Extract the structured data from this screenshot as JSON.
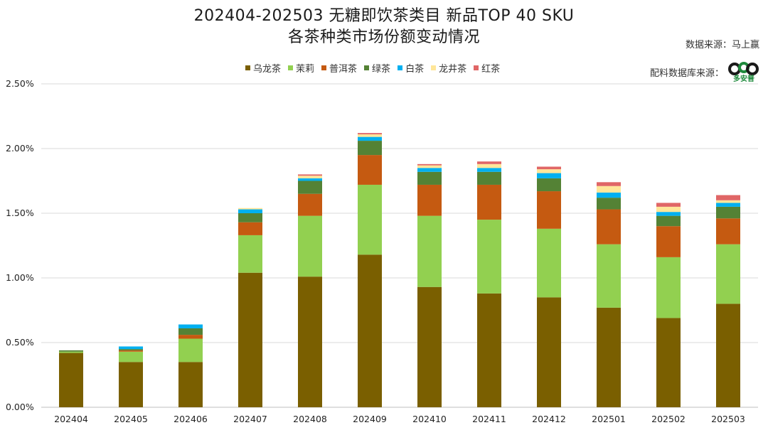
{
  "chart_data": {
    "type": "bar",
    "stacked": true,
    "title": "202404-202503 无糖即饮茶类目 新品TOP 40 SKU",
    "subtitle": "各茶种类市场份额变动情况",
    "categories": [
      "202404",
      "202405",
      "202406",
      "202407",
      "202408",
      "202409",
      "202410",
      "202411",
      "202412",
      "202501",
      "202502",
      "202503"
    ],
    "series": [
      {
        "name": "乌龙茶",
        "color": "#7a5f00",
        "values": [
          0.42,
          0.35,
          0.35,
          1.04,
          1.01,
          1.18,
          0.93,
          0.88,
          0.85,
          0.77,
          0.69,
          0.8
        ]
      },
      {
        "name": "茉莉",
        "color": "#92d050",
        "values": [
          0.01,
          0.08,
          0.18,
          0.29,
          0.47,
          0.54,
          0.55,
          0.57,
          0.53,
          0.49,
          0.47,
          0.46
        ]
      },
      {
        "name": "普洱茶",
        "color": "#c55a11",
        "values": [
          0.0,
          0.01,
          0.03,
          0.1,
          0.17,
          0.23,
          0.24,
          0.27,
          0.29,
          0.27,
          0.24,
          0.2
        ]
      },
      {
        "name": "绿茶",
        "color": "#548235",
        "values": [
          0.01,
          0.01,
          0.05,
          0.07,
          0.1,
          0.11,
          0.1,
          0.1,
          0.1,
          0.09,
          0.08,
          0.09
        ]
      },
      {
        "name": "白茶",
        "color": "#00b0f0",
        "values": [
          0.0,
          0.02,
          0.03,
          0.03,
          0.02,
          0.03,
          0.03,
          0.03,
          0.04,
          0.04,
          0.03,
          0.03
        ]
      },
      {
        "name": "龙井茶",
        "color": "#ffe699",
        "values": [
          0.0,
          0.0,
          0.0,
          0.01,
          0.02,
          0.02,
          0.02,
          0.03,
          0.03,
          0.05,
          0.04,
          0.02
        ]
      },
      {
        "name": "红茶",
        "color": "#e06666",
        "values": [
          0.0,
          0.0,
          0.0,
          0.0,
          0.01,
          0.01,
          0.01,
          0.02,
          0.02,
          0.03,
          0.03,
          0.04
        ]
      }
    ],
    "ylim": [
      0,
      2.5
    ],
    "yticks": [
      "0.00%",
      "0.50%",
      "1.00%",
      "1.50%",
      "2.00%",
      "2.50%"
    ],
    "ytick_values": [
      0,
      0.5,
      1.0,
      1.5,
      2.0,
      2.5
    ],
    "grid": true,
    "legend_position": "top",
    "xlabel": "",
    "ylabel": ""
  },
  "source": "数据来源：马上赢",
  "source2": "配料数据库来源：",
  "logo_text": "多安普"
}
